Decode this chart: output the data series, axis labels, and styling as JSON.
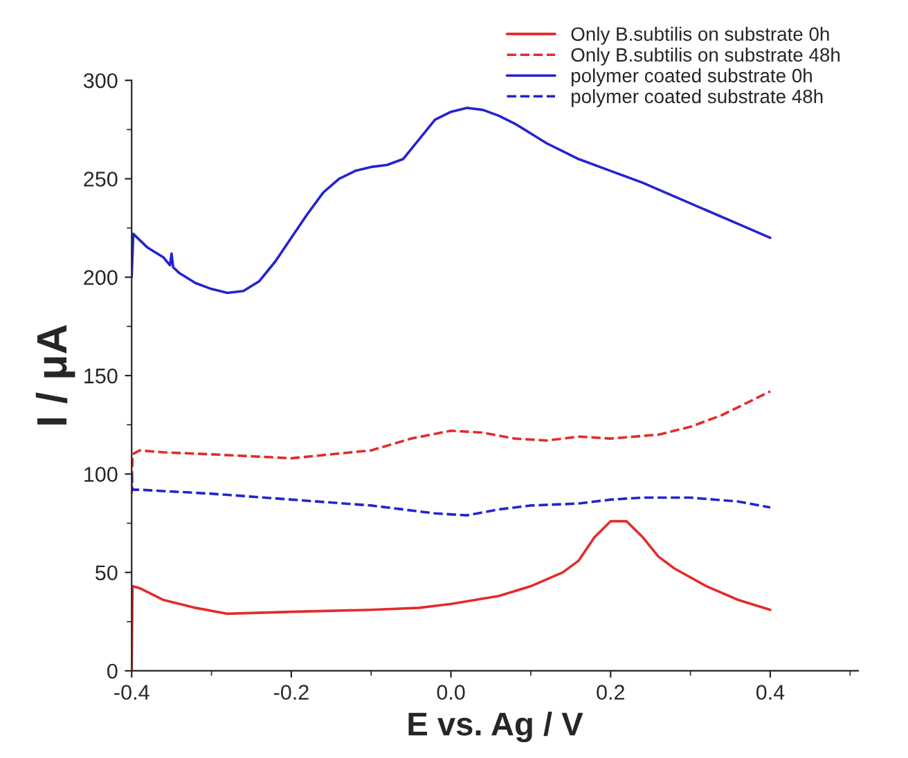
{
  "chart_data": {
    "type": "line",
    "xlabel": "E vs. Ag / V",
    "ylabel": "I / μA",
    "xlim": [
      -0.4,
      0.51
    ],
    "ylim": [
      0,
      300
    ],
    "xticks": [
      -0.4,
      -0.2,
      {
        "value": 0,
        "label": "0.0"
      },
      0.2,
      0.4
    ],
    "yticks": [
      0,
      50,
      100,
      150,
      200,
      250,
      300
    ],
    "grid": false,
    "legend": "top right",
    "marker": "none",
    "series": [
      {
        "name": "Only B.subtilis on substrate 0h",
        "color": "#e32b2b",
        "line_style": "solid",
        "x": [
          -0.4,
          -0.399,
          -0.39,
          -0.36,
          -0.32,
          -0.28,
          -0.2,
          -0.1,
          -0.04,
          0.0,
          0.06,
          0.1,
          0.14,
          0.16,
          0.18,
          0.2,
          0.22,
          0.24,
          0.26,
          0.28,
          0.32,
          0.36,
          0.4
        ],
        "values": [
          0,
          43,
          42,
          36,
          32,
          29,
          30,
          31,
          32,
          34,
          38,
          43,
          50,
          56,
          68,
          76,
          76,
          68,
          58,
          52,
          43,
          36,
          31
        ]
      },
      {
        "name": "Only B.subtilis on substrate 48h",
        "color": "#e32b2b",
        "line_style": "dashed",
        "x": [
          -0.4,
          -0.399,
          -0.39,
          -0.36,
          -0.3,
          -0.2,
          -0.1,
          -0.05,
          0.0,
          0.04,
          0.08,
          0.12,
          0.16,
          0.2,
          0.26,
          0.3,
          0.34,
          0.4
        ],
        "values": [
          90,
          110,
          112,
          111,
          110,
          108,
          112,
          118,
          122,
          121,
          118,
          117,
          119,
          118,
          120,
          124,
          130,
          142
        ]
      },
      {
        "name": "polymer coated substrate 0h",
        "color": "#2323d0",
        "line_style": "solid",
        "x": [
          -0.4,
          -0.398,
          -0.38,
          -0.36,
          -0.352,
          -0.35,
          -0.348,
          -0.34,
          -0.32,
          -0.3,
          -0.28,
          -0.26,
          -0.24,
          -0.22,
          -0.2,
          -0.18,
          -0.16,
          -0.14,
          -0.12,
          -0.1,
          -0.08,
          -0.06,
          -0.04,
          -0.02,
          0.0,
          0.02,
          0.04,
          0.06,
          0.08,
          0.1,
          0.12,
          0.14,
          0.16,
          0.2,
          0.24,
          0.28,
          0.32,
          0.36,
          0.4
        ],
        "values": [
          200,
          222,
          215,
          210,
          206,
          212,
          205,
          202,
          197,
          194,
          192,
          193,
          198,
          208,
          220,
          232,
          243,
          250,
          254,
          256,
          257,
          260,
          270,
          280,
          284,
          286,
          285,
          282,
          278,
          273,
          268,
          264,
          260,
          254,
          248,
          241,
          234,
          227,
          220
        ]
      },
      {
        "name": "polymer coated substrate 48h",
        "color": "#2323d0",
        "line_style": "dashed",
        "x": [
          -0.4,
          -0.399,
          -0.39,
          -0.3,
          -0.2,
          -0.1,
          -0.02,
          0.02,
          0.06,
          0.1,
          0.16,
          0.2,
          0.24,
          0.3,
          0.36,
          0.4
        ],
        "values": [
          100,
          92,
          92,
          90,
          87,
          84,
          80,
          79,
          82,
          84,
          85,
          87,
          88,
          88,
          86,
          83
        ]
      }
    ]
  }
}
